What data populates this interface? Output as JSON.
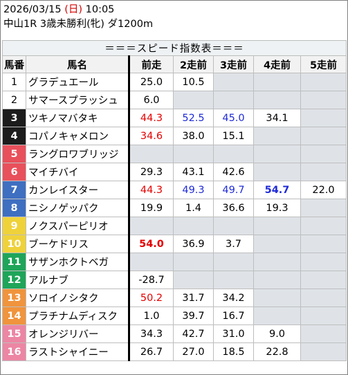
{
  "header": {
    "date": "2026/03/15",
    "dow": "(日)",
    "time": "10:05",
    "race": "中山1R 3歳未勝利(牝) ダ1200m"
  },
  "table": {
    "caption": "＝＝＝スピード指数表＝＝＝",
    "columns": [
      "馬番",
      "馬名",
      "前走",
      "2走前",
      "3走前",
      "4走前",
      "5走前"
    ],
    "rows": [
      {
        "num": "1",
        "name": "グラデュエール",
        "bg": "#ffffff",
        "fg": "#000000",
        "vals": [
          [
            "25.0",
            ""
          ],
          [
            "10.5",
            ""
          ],
          null,
          null,
          null
        ]
      },
      {
        "num": "2",
        "name": "サマースプラッシュ",
        "bg": "#ffffff",
        "fg": "#000000",
        "vals": [
          [
            "6.0",
            ""
          ],
          null,
          null,
          null,
          null
        ]
      },
      {
        "num": "3",
        "name": "ツキノマバタキ",
        "bg": "#1c1c1c",
        "fg": "#ffffff",
        "vals": [
          [
            "44.3",
            "red"
          ],
          [
            "52.5",
            "blue"
          ],
          [
            "45.0",
            "blue"
          ],
          [
            "34.1",
            ""
          ],
          null
        ]
      },
      {
        "num": "4",
        "name": "コパノキャメロン",
        "bg": "#1c1c1c",
        "fg": "#ffffff",
        "vals": [
          [
            "34.6",
            "red"
          ],
          [
            "38.0",
            ""
          ],
          [
            "15.1",
            ""
          ],
          null,
          null
        ]
      },
      {
        "num": "5",
        "name": "ラングロワブリッジ",
        "bg": "#e8505b",
        "fg": "#ffffff",
        "vals": [
          null,
          null,
          null,
          null,
          null
        ]
      },
      {
        "num": "6",
        "name": "マイチバイ",
        "bg": "#e8505b",
        "fg": "#ffffff",
        "vals": [
          [
            "29.3",
            ""
          ],
          [
            "43.1",
            ""
          ],
          [
            "42.6",
            ""
          ],
          null,
          null
        ]
      },
      {
        "num": "7",
        "name": "カンレイスター",
        "bg": "#3f6fc1",
        "fg": "#ffffff",
        "vals": [
          [
            "44.3",
            "red"
          ],
          [
            "49.3",
            "blue"
          ],
          [
            "49.7",
            "blue"
          ],
          [
            "54.7",
            "blue bold"
          ],
          [
            "22.0",
            ""
          ]
        ]
      },
      {
        "num": "8",
        "name": "ニシノゲッパク",
        "bg": "#3f6fc1",
        "fg": "#ffffff",
        "vals": [
          [
            "19.9",
            ""
          ],
          [
            "1.4",
            ""
          ],
          [
            "36.6",
            ""
          ],
          [
            "19.3",
            ""
          ],
          null
        ]
      },
      {
        "num": "9",
        "name": "ノクスパーピリオ",
        "bg": "#efd23a",
        "fg": "#ffffff",
        "vals": [
          null,
          null,
          null,
          null,
          null
        ]
      },
      {
        "num": "10",
        "name": "ブーケドリス",
        "bg": "#efd23a",
        "fg": "#ffffff",
        "vals": [
          [
            "54.0",
            "red bold"
          ],
          [
            "36.9",
            ""
          ],
          [
            "3.7",
            ""
          ],
          null,
          null
        ]
      },
      {
        "num": "11",
        "name": "サザンホクトベガ",
        "bg": "#1fa55a",
        "fg": "#ffffff",
        "vals": [
          null,
          null,
          null,
          null,
          null
        ]
      },
      {
        "num": "12",
        "name": "アルナブ",
        "bg": "#1fa55a",
        "fg": "#ffffff",
        "vals": [
          [
            "-28.7",
            ""
          ],
          null,
          null,
          null,
          null
        ]
      },
      {
        "num": "13",
        "name": "ソロイノシタク",
        "bg": "#f0943d",
        "fg": "#ffffff",
        "vals": [
          [
            "50.2",
            "red"
          ],
          [
            "31.7",
            ""
          ],
          [
            "34.2",
            ""
          ],
          null,
          null
        ]
      },
      {
        "num": "14",
        "name": "プラチナムディスク",
        "bg": "#f0943d",
        "fg": "#ffffff",
        "vals": [
          [
            "1.0",
            ""
          ],
          [
            "39.7",
            ""
          ],
          [
            "16.7",
            ""
          ],
          null,
          null
        ]
      },
      {
        "num": "15",
        "name": "オレンジリバー",
        "bg": "#ec86a4",
        "fg": "#ffffff",
        "vals": [
          [
            "34.3",
            ""
          ],
          [
            "42.7",
            ""
          ],
          [
            "31.0",
            ""
          ],
          [
            "9.0",
            ""
          ],
          null
        ]
      },
      {
        "num": "16",
        "name": "ラストシャイニー",
        "bg": "#ec86a4",
        "fg": "#ffffff",
        "vals": [
          [
            "26.7",
            ""
          ],
          [
            "27.0",
            ""
          ],
          [
            "18.5",
            ""
          ],
          [
            "22.8",
            ""
          ],
          null
        ]
      }
    ]
  }
}
